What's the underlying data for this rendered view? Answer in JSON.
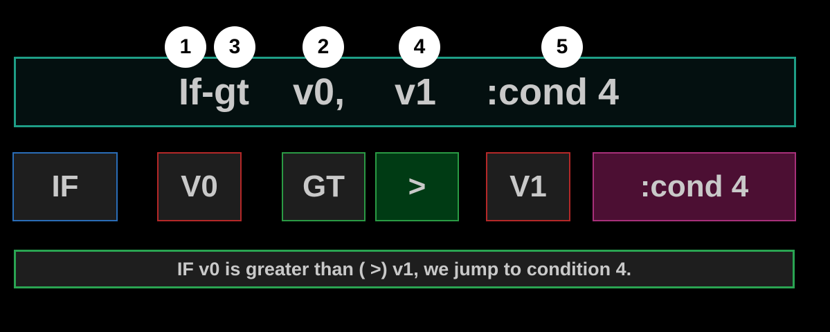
{
  "badges": [
    "1",
    "3",
    "2",
    "4",
    "5"
  ],
  "instruction": {
    "opcode": "If-gt",
    "reg_a": "v0,",
    "reg_b": "v1",
    "target": ":cond 4"
  },
  "tiles": {
    "if": "IF",
    "v0": "V0",
    "gt": "GT",
    "gt_symbol": ">",
    "v1": "V1",
    "cond": ":cond 4"
  },
  "caption": "IF v0 is greater than ( >) v1, we jump to condition 4.",
  "colors": {
    "background": "#000000",
    "instruction_border": "#1e9e86",
    "caption_border": "#2aa452",
    "if_border": "#2a6db8",
    "register_border": "#b52828",
    "gt_border": "#2a9a44",
    "gt_symbol_fill": "#003b14",
    "cond_border": "#a8307a",
    "cond_fill": "#4c0f33",
    "text": "#c9c9c9"
  }
}
